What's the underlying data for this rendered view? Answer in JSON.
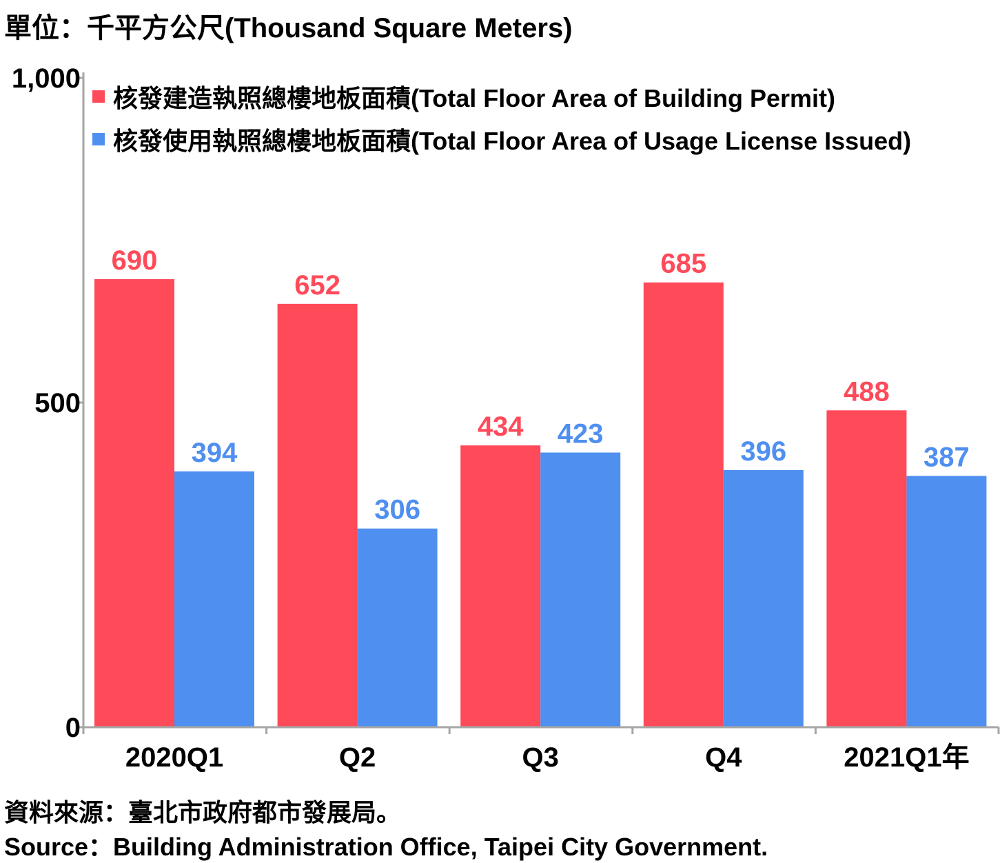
{
  "header": {
    "unit": "單位：千平方公尺(Thousand Square Meters)"
  },
  "footer": {
    "source_zh": "資料來源：臺北市政府都市發展局。",
    "source_en": "Source：Building Administration Office, Taipei City Government."
  },
  "colors": {
    "permit": "#ff4a5a",
    "usage": "#4f8ff0",
    "axis": "#a6a6a6"
  },
  "chart_data": {
    "type": "bar",
    "categories": [
      "2020Q1",
      "Q2",
      "Q3",
      "Q4",
      "2021Q1年"
    ],
    "series": [
      {
        "name": "核發建造執照總樓地板面積(Total Floor Area of Building Permit)",
        "values": [
          690,
          652,
          434,
          685,
          488
        ]
      },
      {
        "name": "核發使用執照總樓地板面積(Total Floor Area of Usage License Issued)",
        "values": [
          394,
          306,
          423,
          396,
          387
        ]
      }
    ],
    "yticks": [
      "0",
      "500",
      "1,000"
    ],
    "ytick_values": [
      0,
      500,
      1000
    ],
    "ylim": [
      0,
      1000
    ],
    "legend": "top-left",
    "grid": false,
    "data_labels": true
  }
}
